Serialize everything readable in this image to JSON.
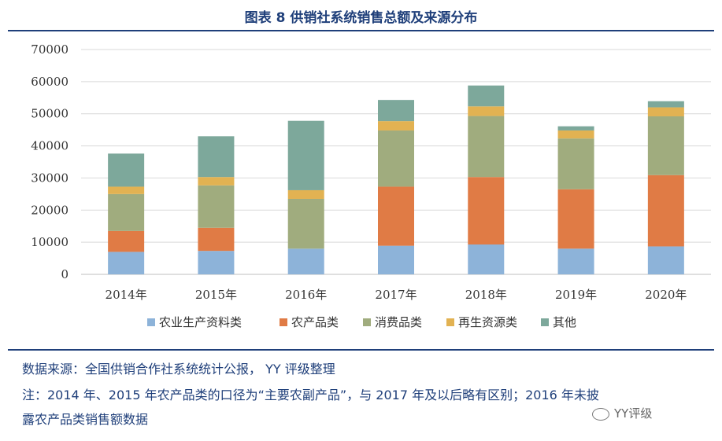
{
  "title": "图表 8 供销社系统销售总额及来源分布",
  "source": "数据来源：全国供销合作社系统统计公报， YY 评级整理",
  "note_line1": "注：2014 年、2015 年农产品类的口径为“主要农副产品”，与 2017 年及以后略有区别；2016 年未披",
  "note_line2": "露农产品类销售额数据",
  "logo_text": "YY评级",
  "chart_data": {
    "type": "bar",
    "stacked": true,
    "categories": [
      "2014年",
      "2015年",
      "2016年",
      "2017年",
      "2018年",
      "2019年",
      "2020年"
    ],
    "ylim": [
      0,
      70000
    ],
    "yticks": [
      0,
      10000,
      20000,
      30000,
      40000,
      50000,
      60000,
      70000
    ],
    "grid": true,
    "legend_position": "bottom",
    "series": [
      {
        "name": "农业生产资料类",
        "color": "#8db3d9",
        "values": [
          7000,
          7300,
          8000,
          8900,
          9300,
          8000,
          8700
        ]
      },
      {
        "name": "农产品类",
        "color": "#e07b45",
        "values": [
          6500,
          7200,
          0,
          18400,
          21000,
          18500,
          22200
        ]
      },
      {
        "name": "消费品类",
        "color": "#a0ac7e",
        "values": [
          11500,
          13200,
          15500,
          17500,
          19000,
          15800,
          18300
        ]
      },
      {
        "name": "再生资源类",
        "color": "#e2b252",
        "values": [
          2300,
          2600,
          2700,
          2900,
          3000,
          2500,
          2800
        ]
      },
      {
        "name": "其他",
        "color": "#7da89b",
        "values": [
          10300,
          12700,
          21600,
          6600,
          6500,
          1300,
          1900
        ]
      }
    ]
  }
}
